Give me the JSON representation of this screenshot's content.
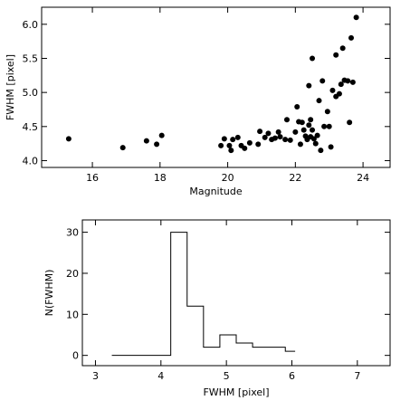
{
  "chart_data": [
    {
      "type": "scatter",
      "xlabel": "Magnitude",
      "ylabel": "FWHM [pixel]",
      "xlim": [
        14.5,
        24.8
      ],
      "ylim": [
        3.9,
        6.25
      ],
      "xticks": [
        16,
        18,
        20,
        22,
        24
      ],
      "yticks": [
        4.0,
        4.5,
        5.0,
        5.5,
        6.0
      ],
      "xtick_labels": [
        "16",
        "18",
        "20",
        "22",
        "24"
      ],
      "ytick_labels": [
        "4.0",
        "4.5",
        "5.0",
        "5.5",
        "6.0"
      ],
      "grid": false,
      "marker_color": "#000000",
      "points": [
        {
          "x": 15.3,
          "y": 4.32
        },
        {
          "x": 16.9,
          "y": 4.19
        },
        {
          "x": 17.6,
          "y": 4.29
        },
        {
          "x": 17.9,
          "y": 4.24
        },
        {
          "x": 18.05,
          "y": 4.37
        },
        {
          "x": 19.8,
          "y": 4.22
        },
        {
          "x": 19.9,
          "y": 4.32
        },
        {
          "x": 20.05,
          "y": 4.22
        },
        {
          "x": 20.1,
          "y": 4.15
        },
        {
          "x": 20.15,
          "y": 4.31
        },
        {
          "x": 20.3,
          "y": 4.34
        },
        {
          "x": 20.4,
          "y": 4.22
        },
        {
          "x": 20.5,
          "y": 4.18
        },
        {
          "x": 20.65,
          "y": 4.26
        },
        {
          "x": 20.9,
          "y": 4.24
        },
        {
          "x": 20.95,
          "y": 4.43
        },
        {
          "x": 21.1,
          "y": 4.34
        },
        {
          "x": 21.2,
          "y": 4.4
        },
        {
          "x": 21.3,
          "y": 4.31
        },
        {
          "x": 21.4,
          "y": 4.33
        },
        {
          "x": 21.5,
          "y": 4.42
        },
        {
          "x": 21.55,
          "y": 4.35
        },
        {
          "x": 21.7,
          "y": 4.31
        },
        {
          "x": 21.75,
          "y": 4.6
        },
        {
          "x": 21.85,
          "y": 4.3
        },
        {
          "x": 22.0,
          "y": 4.42
        },
        {
          "x": 22.05,
          "y": 4.79
        },
        {
          "x": 22.1,
          "y": 4.57
        },
        {
          "x": 22.15,
          "y": 4.24
        },
        {
          "x": 22.2,
          "y": 4.56
        },
        {
          "x": 22.25,
          "y": 4.45
        },
        {
          "x": 22.3,
          "y": 4.36
        },
        {
          "x": 22.35,
          "y": 4.31
        },
        {
          "x": 22.4,
          "y": 4.52
        },
        {
          "x": 22.4,
          "y": 5.1
        },
        {
          "x": 22.45,
          "y": 4.6
        },
        {
          "x": 22.45,
          "y": 4.35
        },
        {
          "x": 22.5,
          "y": 5.5
        },
        {
          "x": 22.5,
          "y": 4.45
        },
        {
          "x": 22.55,
          "y": 4.32
        },
        {
          "x": 22.6,
          "y": 4.25
        },
        {
          "x": 22.65,
          "y": 4.37
        },
        {
          "x": 22.7,
          "y": 4.88
        },
        {
          "x": 22.75,
          "y": 4.15
        },
        {
          "x": 22.8,
          "y": 5.17
        },
        {
          "x": 22.85,
          "y": 4.5
        },
        {
          "x": 22.95,
          "y": 4.72
        },
        {
          "x": 23.0,
          "y": 4.5
        },
        {
          "x": 23.05,
          "y": 4.2
        },
        {
          "x": 23.1,
          "y": 5.03
        },
        {
          "x": 23.2,
          "y": 5.55
        },
        {
          "x": 23.2,
          "y": 4.94
        },
        {
          "x": 23.3,
          "y": 4.98
        },
        {
          "x": 23.35,
          "y": 5.12
        },
        {
          "x": 23.4,
          "y": 5.65
        },
        {
          "x": 23.45,
          "y": 5.18
        },
        {
          "x": 23.55,
          "y": 5.17
        },
        {
          "x": 23.6,
          "y": 4.56
        },
        {
          "x": 23.65,
          "y": 5.8
        },
        {
          "x": 23.7,
          "y": 5.15
        },
        {
          "x": 23.8,
          "y": 6.1
        }
      ]
    },
    {
      "type": "histogram",
      "xlabel": "FWHM [pixel]",
      "ylabel": "N(FWHM)",
      "xlim": [
        2.8,
        7.5
      ],
      "ylim": [
        -2.5,
        33
      ],
      "xticks": [
        3,
        4,
        5,
        6,
        7
      ],
      "yticks": [
        0,
        10,
        20,
        30
      ],
      "xtick_labels": [
        "3",
        "4",
        "5",
        "6",
        "7"
      ],
      "ytick_labels": [
        "0",
        "10",
        "20",
        "30"
      ],
      "grid": false,
      "line_color": "#000000",
      "bins": [
        {
          "x0": 3.25,
          "x1": 4.15,
          "count": 0
        },
        {
          "x0": 4.15,
          "x1": 4.4,
          "count": 30
        },
        {
          "x0": 4.4,
          "x1": 4.65,
          "count": 12
        },
        {
          "x0": 4.65,
          "x1": 4.9,
          "count": 2
        },
        {
          "x0": 4.9,
          "x1": 5.15,
          "count": 5
        },
        {
          "x0": 5.15,
          "x1": 5.4,
          "count": 3
        },
        {
          "x0": 5.4,
          "x1": 5.65,
          "count": 2
        },
        {
          "x0": 5.65,
          "x1": 5.9,
          "count": 2
        },
        {
          "x0": 5.9,
          "x1": 6.05,
          "count": 1
        }
      ]
    }
  ]
}
